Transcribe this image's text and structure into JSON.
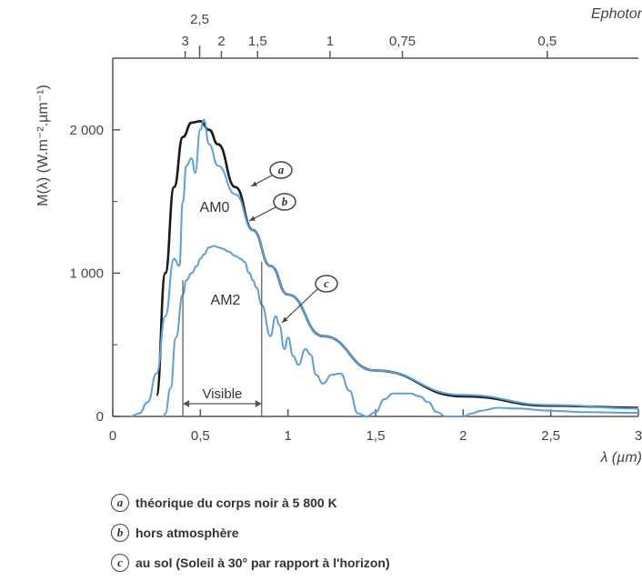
{
  "chart_data": {
    "type": "line",
    "axes": {
      "x": {
        "label": "λ (µm)",
        "range": [
          0,
          3
        ],
        "ticks": [
          0,
          0.5,
          1,
          1.5,
          2,
          2.5,
          3
        ],
        "tick_labels": [
          "0",
          "0,5",
          "1",
          "1,5",
          "2",
          "2,5",
          "3"
        ]
      },
      "y": {
        "label": "M(λ) (W.m⁻².µm⁻¹)",
        "range": [
          0,
          2500
        ],
        "ticks": [
          0,
          1000,
          2000
        ],
        "tick_labels": [
          "0",
          "1 000",
          "2 000"
        ]
      },
      "x_top": {
        "label": "Ephotons (eV)",
        "ticks": [
          3,
          2.5,
          2,
          1.5,
          1,
          0.75,
          0.5
        ],
        "tick_labels": [
          "3",
          "2,5",
          "2",
          "1,5",
          "1",
          "0,75",
          "0,5"
        ]
      }
    },
    "series": [
      {
        "key": "a",
        "color": "#1a1a1a",
        "x": [
          0.25,
          0.3,
          0.35,
          0.4,
          0.45,
          0.5,
          0.55,
          0.6,
          0.7,
          0.8,
          0.9,
          1.0,
          1.2,
          1.5,
          2.0,
          2.5,
          3.0
        ],
        "y": [
          150,
          1000,
          1600,
          1950,
          2050,
          2060,
          2000,
          1900,
          1600,
          1300,
          1050,
          850,
          560,
          320,
          140,
          75,
          60
        ]
      },
      {
        "key": "b",
        "color": "#5aa0dc",
        "x": [
          0.1,
          0.15,
          0.2,
          0.25,
          0.3,
          0.35,
          0.38,
          0.4,
          0.42,
          0.45,
          0.47,
          0.5,
          0.52,
          0.55,
          0.6,
          0.7,
          0.8,
          0.9,
          1.0,
          1.2,
          1.5,
          2.0,
          2.5,
          3.0
        ],
        "y": [
          0,
          20,
          100,
          300,
          700,
          1100,
          1050,
          1500,
          1750,
          1800,
          1700,
          2000,
          2070,
          1900,
          1750,
          1550,
          1300,
          1050,
          850,
          560,
          320,
          150,
          80,
          55
        ]
      },
      {
        "key": "c",
        "color": "#5aa0dc",
        "x": [
          0.29,
          0.3,
          0.33,
          0.36,
          0.4,
          0.42,
          0.45,
          0.48,
          0.5,
          0.52,
          0.55,
          0.58,
          0.6,
          0.63,
          0.66,
          0.7,
          0.73,
          0.75,
          0.78,
          0.8,
          0.82,
          0.85,
          0.9,
          0.93,
          0.95,
          0.98,
          1.0,
          1.03,
          1.06,
          1.1,
          1.13,
          1.16,
          1.2,
          1.25,
          1.3,
          1.35,
          1.4,
          1.45,
          1.5,
          1.55,
          1.6,
          1.7,
          1.75,
          1.8,
          1.85,
          1.9,
          2.0,
          2.05,
          2.1,
          2.2,
          2.3,
          2.5,
          2.7,
          3.0
        ],
        "y": [
          0,
          20,
          200,
          550,
          850,
          950,
          1000,
          1050,
          1100,
          1130,
          1180,
          1190,
          1180,
          1170,
          1150,
          1120,
          1100,
          1080,
          1000,
          950,
          900,
          780,
          560,
          700,
          640,
          470,
          550,
          420,
          360,
          470,
          430,
          290,
          230,
          290,
          300,
          180,
          20,
          0,
          30,
          120,
          160,
          160,
          140,
          100,
          30,
          0,
          0,
          20,
          40,
          60,
          55,
          40,
          30,
          25
        ]
      }
    ],
    "annotations": {
      "am0": "AM0",
      "am2": "AM2",
      "visible": "Visible",
      "marker_a": "a",
      "marker_b": "b",
      "marker_c": "c"
    },
    "visible_range": [
      0.4,
      0.85
    ],
    "grid": false
  },
  "legend": [
    {
      "letter": "a",
      "text": "théorique du corps noir à 5 800 K"
    },
    {
      "letter": "b",
      "text": "hors atmosphère"
    },
    {
      "letter": "c",
      "text": "au sol (Soleil à 30° par rapport à l'horizon)"
    }
  ]
}
